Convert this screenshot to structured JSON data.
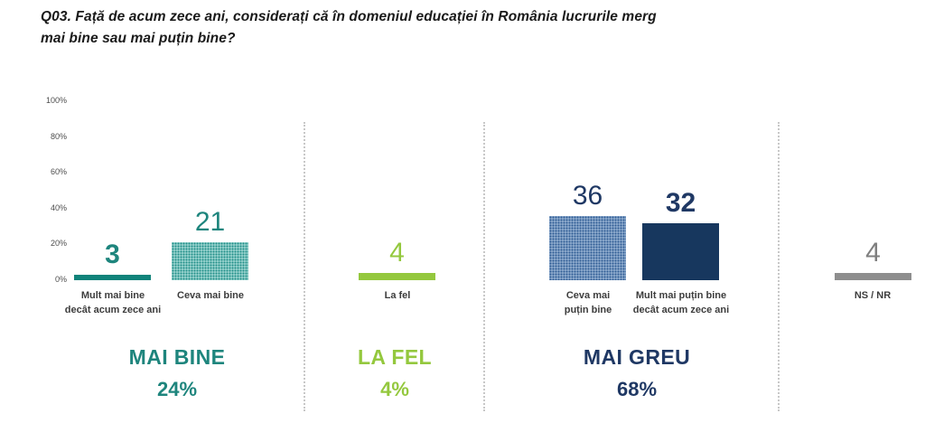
{
  "title": "Q03. Față de acum zece ani, considerați că în domeniul educației în România lucrurile merg mai bine sau mai puțin bine?",
  "chart_data": {
    "type": "bar",
    "title": "Q03. Față de acum zece ani, considerați că în domeniul educației în România lucrurile merg mai bine sau mai puțin bine?",
    "xlabel": "",
    "ylabel": "",
    "ylim": [
      0,
      100
    ],
    "grid": false,
    "legend": false,
    "yticks": [
      "100%",
      "80%",
      "60%",
      "40%",
      "20%",
      "0%"
    ],
    "categories": [
      "Mult mai bine decât acum zece ani",
      "Ceva mai bine",
      "La fel",
      "Ceva mai puțin bine",
      "Mult mai puțin bine decât acum zece ani",
      "NS / NR"
    ],
    "values": [
      3,
      21,
      4,
      36,
      32,
      4
    ],
    "bars": [
      {
        "label_line1": "Mult mai bine",
        "label_line2": "decât acum zece ani",
        "value": 3,
        "fill": "solid-teal",
        "color": "#0f837a"
      },
      {
        "label_line1": "Ceva mai bine",
        "label_line2": "",
        "value": 21,
        "fill": "dotted-teal",
        "color": "#6cbdb8"
      },
      {
        "label_line1": "La fel",
        "label_line2": "",
        "value": 4,
        "fill": "solid-green",
        "color": "#94c83e"
      },
      {
        "label_line1": "Ceva mai",
        "label_line2": "puțin bine",
        "value": 36,
        "fill": "dotted-blue",
        "color": "#7b9cc7"
      },
      {
        "label_line1": "Mult mai puțin bine",
        "label_line2": "decât acum zece ani",
        "value": 32,
        "fill": "solid-navy",
        "color": "#17375e"
      },
      {
        "label_line1": "NS / NR",
        "label_line2": "",
        "value": 4,
        "fill": "solid-gray",
        "color": "#8e8e8e"
      }
    ],
    "groups": [
      {
        "label": "MAI BINE",
        "percent": "24%",
        "color": "#1e857d"
      },
      {
        "label": "LA FEL",
        "percent": "4%",
        "color": "#94c83e"
      },
      {
        "label": "MAI GREU",
        "percent": "68%",
        "color": "#1f3864"
      }
    ]
  }
}
